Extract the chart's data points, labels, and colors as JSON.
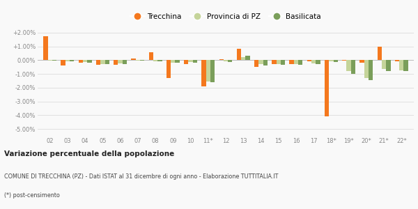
{
  "categories": [
    "02",
    "03",
    "04",
    "05",
    "06",
    "07",
    "08",
    "09",
    "10",
    "11*",
    "12",
    "13",
    "14",
    "15",
    "16",
    "17",
    "18*",
    "19*",
    "20*",
    "21*",
    "22*"
  ],
  "trecchina": [
    1.75,
    -0.4,
    -0.2,
    -0.35,
    -0.35,
    0.1,
    0.6,
    -1.3,
    -0.3,
    -1.9,
    0.05,
    0.85,
    -0.5,
    -0.3,
    -0.3,
    -0.1,
    -4.1,
    -0.05,
    -0.2,
    1.0,
    -0.1
  ],
  "provincia_pz": [
    -0.05,
    -0.1,
    -0.15,
    -0.3,
    -0.25,
    -0.05,
    -0.1,
    -0.2,
    -0.15,
    -1.55,
    -0.1,
    0.2,
    -0.3,
    -0.3,
    -0.3,
    -0.25,
    -0.1,
    -0.8,
    -1.3,
    -0.65,
    -0.75
  ],
  "basilicata": [
    -0.05,
    -0.1,
    -0.2,
    -0.3,
    -0.3,
    -0.05,
    -0.1,
    -0.2,
    -0.2,
    -1.6,
    -0.15,
    0.3,
    -0.4,
    -0.35,
    -0.35,
    -0.3,
    -0.15,
    -1.0,
    -1.45,
    -0.8,
    -0.8
  ],
  "trecchina_color": "#f4781e",
  "provincia_color": "#c5d49a",
  "basilicata_color": "#7a9e5a",
  "bg_color": "#f9f9f9",
  "grid_color": "#e0e0e0",
  "ylim": [
    -5.5,
    2.4
  ],
  "yticks": [
    -5.0,
    -4.0,
    -3.0,
    -2.0,
    -1.0,
    0.0,
    1.0,
    2.0
  ],
  "ytick_labels": [
    "-5.00%",
    "-4.00%",
    "-3.00%",
    "-2.00%",
    "-1.00%",
    "0.00%",
    "+1.00%",
    "+2.00%"
  ],
  "legend_labels": [
    "Trecchina",
    "Provincia di PZ",
    "Basilicata"
  ],
  "title": "Variazione percentuale della popolazione",
  "subtitle": "COMUNE DI TRECCHINA (PZ) - Dati ISTAT al 31 dicembre di ogni anno - Elaborazione TUTTITALIA.IT",
  "footnote": "(*) post-censimento",
  "bar_width": 0.25
}
